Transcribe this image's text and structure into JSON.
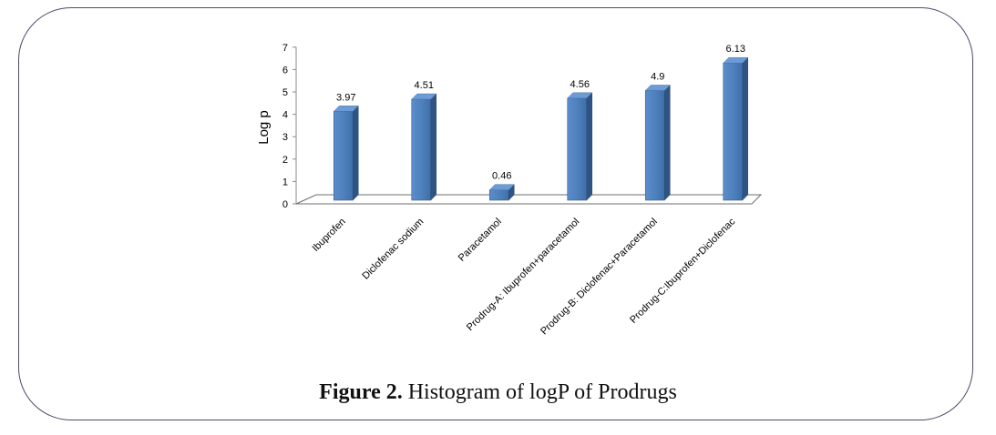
{
  "chart_data": {
    "type": "bar",
    "categories": [
      "Ibuprofen",
      "Diclofenac sodium",
      "Paracetamol",
      "Prodrug-A: Ibuprofen+paracetamol",
      "Prodrug-B: Diclofenac+Paracetamol",
      "Prodrug-C:Ibuprofen+Diclofenac"
    ],
    "values": [
      3.97,
      4.51,
      0.46,
      4.56,
      4.9,
      6.13
    ],
    "data_labels": [
      "3.97",
      "4.51",
      "0.46",
      "4.56",
      "4.9",
      "6.13"
    ],
    "title": "",
    "xlabel": "",
    "ylabel": "Log p",
    "ylim": [
      0,
      7
    ],
    "yticks": [
      "0",
      "1",
      "2",
      "3",
      "4",
      "5",
      "6",
      "7"
    ],
    "grid": false,
    "legend": "none",
    "bar_color": "#4F81BD"
  },
  "caption": {
    "label": "Figure 2.",
    "text": " Histogram of logP of Prodrugs"
  }
}
